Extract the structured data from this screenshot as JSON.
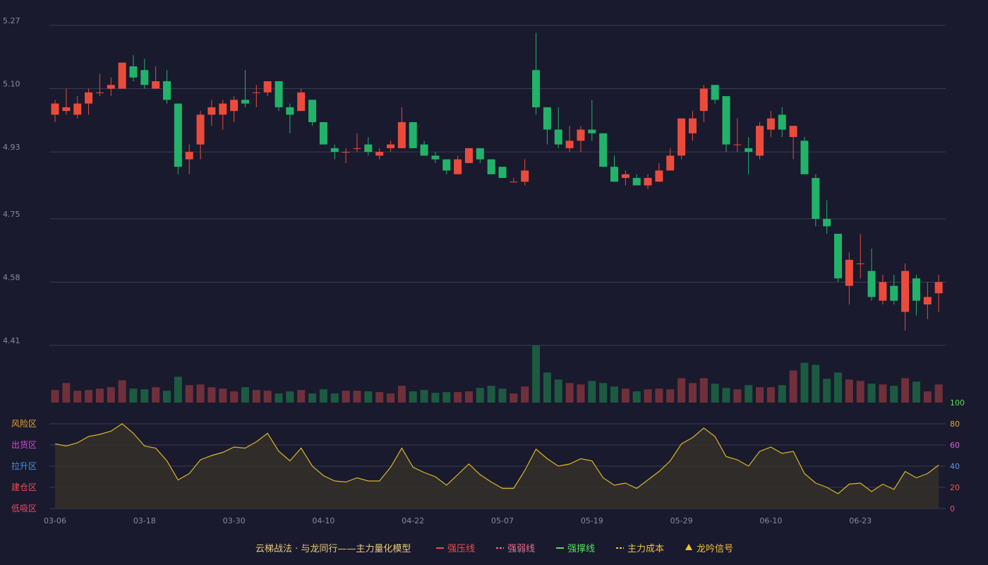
{
  "chart_data": {
    "type": "candlestick",
    "title": "",
    "price_axis": {
      "ticks": [
        "5.27",
        "5.10",
        "4.93",
        "4.75",
        "4.58",
        "4.41"
      ],
      "range": [
        4.41,
        5.27
      ]
    },
    "indicator_axis": {
      "ticks": [
        "100",
        "80",
        "60",
        "40",
        "20",
        "0"
      ],
      "range": [
        0,
        100
      ]
    },
    "zone_labels": [
      {
        "text": "风险区",
        "color": "#e8a33a"
      },
      {
        "text": "出货区",
        "color": "#d24bd6"
      },
      {
        "text": "拉升区",
        "color": "#4a8fe8"
      },
      {
        "text": "建仓区",
        "color": "#e85050"
      },
      {
        "text": "低吸区",
        "color": "#e84a66"
      }
    ],
    "x_ticks": [
      {
        "i": 0,
        "label": "03-06"
      },
      {
        "i": 8,
        "label": "03-18"
      },
      {
        "i": 16,
        "label": "03-30"
      },
      {
        "i": 24,
        "label": "04-10"
      },
      {
        "i": 32,
        "label": "04-22"
      },
      {
        "i": 40,
        "label": "05-07"
      },
      {
        "i": 48,
        "label": "05-19"
      },
      {
        "i": 56,
        "label": "05-29"
      },
      {
        "i": 64,
        "label": "06-10"
      },
      {
        "i": 72,
        "label": "06-23"
      }
    ],
    "candles": [
      [
        5.03,
        5.06,
        5.07,
        5.01
      ],
      [
        5.04,
        5.05,
        5.1,
        5.03
      ],
      [
        5.03,
        5.06,
        5.08,
        5.02
      ],
      [
        5.06,
        5.09,
        5.1,
        5.03
      ],
      [
        5.09,
        5.09,
        5.14,
        5.08
      ],
      [
        5.1,
        5.11,
        5.13,
        5.08
      ],
      [
        5.1,
        5.17,
        5.17,
        5.1
      ],
      [
        5.16,
        5.13,
        5.19,
        5.12
      ],
      [
        5.15,
        5.11,
        5.18,
        5.1
      ],
      [
        5.1,
        5.12,
        5.16,
        5.1
      ],
      [
        5.12,
        5.07,
        5.15,
        5.06
      ],
      [
        5.06,
        4.89,
        5.06,
        4.87
      ],
      [
        4.91,
        4.93,
        4.95,
        4.87
      ],
      [
        4.95,
        5.03,
        5.04,
        4.91
      ],
      [
        5.03,
        5.05,
        5.07,
        5.0
      ],
      [
        5.03,
        5.06,
        5.07,
        4.99
      ],
      [
        5.04,
        5.07,
        5.08,
        5.01
      ],
      [
        5.07,
        5.06,
        5.15,
        5.05
      ],
      [
        5.09,
        5.09,
        5.11,
        5.05
      ],
      [
        5.09,
        5.12,
        5.12,
        5.08
      ],
      [
        5.12,
        5.05,
        5.12,
        5.04
      ],
      [
        5.05,
        5.03,
        5.06,
        4.98
      ],
      [
        5.04,
        5.09,
        5.1,
        5.04
      ],
      [
        5.07,
        5.01,
        5.07,
        5.0
      ],
      [
        5.01,
        4.95,
        5.01,
        4.95
      ],
      [
        4.94,
        4.93,
        4.95,
        4.91
      ],
      [
        4.93,
        4.93,
        4.94,
        4.9
      ],
      [
        4.94,
        4.94,
        4.98,
        4.93
      ],
      [
        4.95,
        4.93,
        4.97,
        4.92
      ],
      [
        4.92,
        4.93,
        4.94,
        4.91
      ],
      [
        4.94,
        4.95,
        4.96,
        4.93
      ],
      [
        4.94,
        5.01,
        5.05,
        4.94
      ],
      [
        5.01,
        4.94,
        5.01,
        4.94
      ],
      [
        4.95,
        4.92,
        4.96,
        4.92
      ],
      [
        4.92,
        4.91,
        4.93,
        4.9
      ],
      [
        4.91,
        4.88,
        4.91,
        4.87
      ],
      [
        4.87,
        4.91,
        4.92,
        4.87
      ],
      [
        4.9,
        4.94,
        4.94,
        4.9
      ],
      [
        4.94,
        4.91,
        4.94,
        4.9
      ],
      [
        4.91,
        4.87,
        4.91,
        4.87
      ],
      [
        4.89,
        4.86,
        4.89,
        4.86
      ],
      [
        4.85,
        4.85,
        4.86,
        4.85
      ],
      [
        4.85,
        4.88,
        4.91,
        4.84
      ],
      [
        5.15,
        5.05,
        5.25,
        5.03
      ],
      [
        5.05,
        4.99,
        5.05,
        4.95
      ],
      [
        4.99,
        4.95,
        5.05,
        4.94
      ],
      [
        4.94,
        4.96,
        5.0,
        4.93
      ],
      [
        4.96,
        4.99,
        5.0,
        4.93
      ],
      [
        4.99,
        4.98,
        5.07,
        4.96
      ],
      [
        4.98,
        4.89,
        4.98,
        4.89
      ],
      [
        4.89,
        4.85,
        4.92,
        4.85
      ],
      [
        4.86,
        4.87,
        4.88,
        4.84
      ],
      [
        4.86,
        4.84,
        4.87,
        4.84
      ],
      [
        4.84,
        4.86,
        4.87,
        4.83
      ],
      [
        4.85,
        4.88,
        4.9,
        4.85
      ],
      [
        4.88,
        4.92,
        4.94,
        4.88
      ],
      [
        4.92,
        5.02,
        5.02,
        4.91
      ],
      [
        4.98,
        5.02,
        5.04,
        4.96
      ],
      [
        5.04,
        5.1,
        5.11,
        5.01
      ],
      [
        5.11,
        5.07,
        5.11,
        5.06
      ],
      [
        5.08,
        4.95,
        5.08,
        4.93
      ],
      [
        4.95,
        4.95,
        5.02,
        4.93
      ],
      [
        4.94,
        4.93,
        4.97,
        4.87
      ],
      [
        4.92,
        5.0,
        5.01,
        4.91
      ],
      [
        4.99,
        5.02,
        5.04,
        4.97
      ],
      [
        5.03,
        4.99,
        5.05,
        4.97
      ],
      [
        4.97,
        5.0,
        5.0,
        4.91
      ],
      [
        4.96,
        4.87,
        4.97,
        4.87
      ],
      [
        4.86,
        4.75,
        4.87,
        4.73
      ],
      [
        4.75,
        4.73,
        4.8,
        4.71
      ],
      [
        4.71,
        4.59,
        4.71,
        4.58
      ],
      [
        4.57,
        4.64,
        4.66,
        4.52
      ],
      [
        4.63,
        4.63,
        4.71,
        4.59
      ],
      [
        4.61,
        4.54,
        4.67,
        4.53
      ],
      [
        4.53,
        4.58,
        4.6,
        4.52
      ],
      [
        4.57,
        4.53,
        4.6,
        4.52
      ],
      [
        4.5,
        4.61,
        4.63,
        4.45
      ],
      [
        4.59,
        4.53,
        4.6,
        4.49
      ],
      [
        4.52,
        4.54,
        4.58,
        4.48
      ],
      [
        4.55,
        4.58,
        4.6,
        4.5
      ]
    ],
    "volume": [
      18,
      28,
      17,
      18,
      20,
      22,
      32,
      20,
      19,
      22,
      17,
      37,
      25,
      26,
      22,
      20,
      16,
      22,
      18,
      17,
      13,
      16,
      18,
      13,
      19,
      13,
      17,
      17,
      16,
      15,
      13,
      24,
      16,
      18,
      14,
      15,
      15,
      16,
      21,
      24,
      20,
      13,
      23,
      82,
      43,
      33,
      28,
      26,
      31,
      28,
      23,
      20,
      16,
      19,
      20,
      19,
      35,
      28,
      35,
      27,
      21,
      19,
      25,
      22,
      22,
      25,
      46,
      57,
      54,
      34,
      43,
      33,
      31,
      27,
      26,
      24,
      35,
      30,
      16,
      26
    ],
    "indicator": [
      61,
      59,
      62,
      68,
      70,
      73,
      80,
      71,
      59,
      57,
      45,
      27,
      33,
      46,
      50,
      53,
      58,
      57,
      63,
      71,
      54,
      45,
      57,
      40,
      31,
      26,
      25,
      29,
      26,
      26,
      39,
      57,
      39,
      34,
      30,
      22,
      32,
      42,
      32,
      25,
      19,
      19,
      36,
      56,
      47,
      40,
      42,
      47,
      45,
      29,
      22,
      24,
      19,
      27,
      35,
      45,
      61,
      67,
      76,
      68,
      49,
      46,
      40,
      54,
      58,
      52,
      54,
      33,
      24,
      20,
      14,
      23,
      24,
      16,
      23,
      18,
      35,
      29,
      33,
      41
    ]
  },
  "legend": {
    "model_name": "云梯战法 · 与龙同行——主力量化模型",
    "items": [
      {
        "label": "强压线",
        "color": "#ef4b4b",
        "style": "solid"
      },
      {
        "label": "强弱线",
        "color": "#f06d8c",
        "style": "dashed"
      },
      {
        "label": "强撑线",
        "color": "#52e25a",
        "style": "solid"
      },
      {
        "label": "主力成本",
        "color": "#f2c230",
        "style": "dashed"
      },
      {
        "label": "龙吟信号",
        "color": "#f2c230",
        "style": "triangle"
      }
    ]
  },
  "colors": {
    "up": "#ec4b3c",
    "down": "#22b36a",
    "up_volume": "#70303b",
    "down_volume": "#1d5a42",
    "indicator_line": "#d9b72a",
    "indicator_fill": "#35302a",
    "grid": "#3a3c50",
    "legend_title": "#e9c877"
  }
}
